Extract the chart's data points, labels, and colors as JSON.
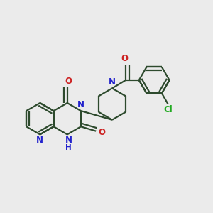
{
  "bg_color": "#ebebeb",
  "bond_color": "#2d4a2d",
  "N_color": "#2222cc",
  "O_color": "#cc2222",
  "Cl_color": "#22aa22",
  "linewidth": 1.6,
  "font_size": 8.5,
  "xlim": [
    0,
    10
  ],
  "ylim": [
    0,
    10
  ]
}
